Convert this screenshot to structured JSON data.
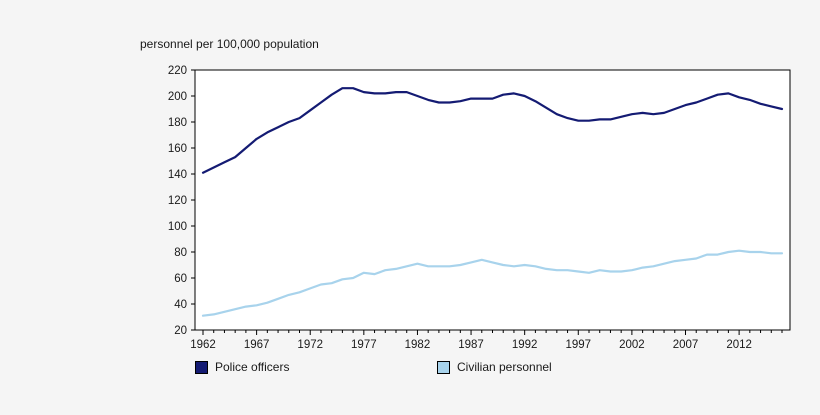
{
  "chart_data": {
    "type": "line",
    "title": "personnel per 100,000 population",
    "xlabel": "",
    "ylabel": "personnel per 100,000 population",
    "ylim": [
      20,
      220
    ],
    "ytick_step": 20,
    "grid": false,
    "legend_position": "bottom",
    "plot_bg": "#ffffff",
    "page_bg": "#f5f5f5",
    "axis_color": "#000000",
    "x": [
      1962,
      1963,
      1964,
      1965,
      1966,
      1967,
      1968,
      1969,
      1970,
      1971,
      1972,
      1973,
      1974,
      1975,
      1976,
      1977,
      1978,
      1979,
      1980,
      1981,
      1982,
      1983,
      1984,
      1985,
      1986,
      1987,
      1988,
      1989,
      1990,
      1991,
      1992,
      1993,
      1994,
      1995,
      1996,
      1997,
      1998,
      1999,
      2000,
      2001,
      2002,
      2003,
      2004,
      2005,
      2006,
      2007,
      2008,
      2009,
      2010,
      2011,
      2012,
      2013,
      2014,
      2015,
      2016
    ],
    "xticks_labeled": [
      1962,
      1967,
      1972,
      1977,
      1982,
      1987,
      1992,
      1997,
      2002,
      2007,
      2012
    ],
    "series": [
      {
        "name": "Police officers",
        "color": "#141b73",
        "values": [
          141,
          145,
          149,
          153,
          160,
          167,
          172,
          176,
          180,
          183,
          189,
          195,
          201,
          206,
          206,
          203,
          202,
          202,
          203,
          203,
          200,
          197,
          195,
          195,
          196,
          198,
          198,
          198,
          201,
          202,
          200,
          196,
          191,
          186,
          183,
          181,
          181,
          182,
          182,
          184,
          186,
          187,
          186,
          187,
          190,
          193,
          195,
          198,
          201,
          202,
          199,
          197,
          194,
          192,
          190
        ]
      },
      {
        "name": "Civilian personnel",
        "color": "#a8d3ec",
        "values": [
          31,
          32,
          34,
          36,
          38,
          39,
          41,
          44,
          47,
          49,
          52,
          55,
          56,
          59,
          60,
          64,
          63,
          66,
          67,
          69,
          71,
          69,
          69,
          69,
          70,
          72,
          74,
          72,
          70,
          69,
          70,
          69,
          67,
          66,
          66,
          65,
          64,
          66,
          65,
          65,
          66,
          68,
          69,
          71,
          73,
          74,
          75,
          78,
          78,
          80,
          81,
          80,
          80,
          79,
          79
        ]
      }
    ]
  }
}
